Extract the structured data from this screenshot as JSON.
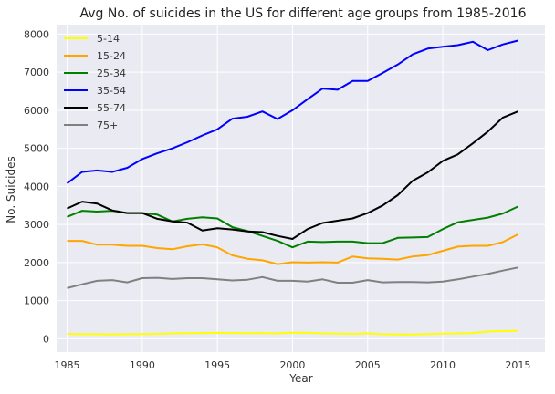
{
  "chart_data": {
    "type": "line",
    "title": "Avg No. of suicides in the US for different age groups from 1985-2016",
    "xlabel": "Year",
    "ylabel": "No. Suicides",
    "xlim": [
      1984.3,
      2016.8
    ],
    "ylim": [
      -350,
      8250
    ],
    "xticks": [
      1985,
      1990,
      1995,
      2000,
      2005,
      2010,
      2015
    ],
    "yticks": [
      0,
      1000,
      2000,
      3000,
      4000,
      5000,
      6000,
      7000,
      8000
    ],
    "grid": true,
    "legend_position": "top-left",
    "x": [
      1985,
      1986,
      1987,
      1988,
      1989,
      1990,
      1991,
      1992,
      1993,
      1994,
      1995,
      1996,
      1997,
      1998,
      1999,
      2000,
      2001,
      2002,
      2003,
      2004,
      2005,
      2006,
      2007,
      2008,
      2009,
      2010,
      2011,
      2012,
      2013,
      2014,
      2015
    ],
    "series": [
      {
        "name": "5-14",
        "color": "#ffff00",
        "values": [
          130,
          120,
          120,
          115,
          120,
          125,
          130,
          140,
          145,
          150,
          155,
          150,
          145,
          150,
          140,
          160,
          155,
          140,
          135,
          130,
          140,
          120,
          110,
          115,
          125,
          135,
          140,
          150,
          190,
          200,
          210
        ]
      },
      {
        "name": "15-24",
        "color": "#ffa500",
        "values": [
          2570,
          2570,
          2470,
          2470,
          2440,
          2440,
          2380,
          2350,
          2430,
          2480,
          2400,
          2190,
          2100,
          2060,
          1960,
          2010,
          2000,
          2010,
          2000,
          2160,
          2110,
          2100,
          2080,
          2160,
          2200,
          2310,
          2420,
          2440,
          2440,
          2540,
          2740
        ]
      },
      {
        "name": "25-34",
        "color": "#008000",
        "values": [
          3200,
          3360,
          3340,
          3360,
          3300,
          3300,
          3260,
          3080,
          3150,
          3190,
          3160,
          2930,
          2830,
          2700,
          2570,
          2400,
          2550,
          2540,
          2550,
          2550,
          2510,
          2510,
          2650,
          2660,
          2670,
          2880,
          3060,
          3120,
          3180,
          3290,
          3470
        ]
      },
      {
        "name": "35-54",
        "color": "#0000ff",
        "values": [
          4080,
          4380,
          4420,
          4380,
          4490,
          4720,
          4870,
          5000,
          5160,
          5340,
          5500,
          5780,
          5830,
          5970,
          5770,
          6000,
          6290,
          6570,
          6540,
          6770,
          6770,
          6980,
          7200,
          7470,
          7620,
          7670,
          7710,
          7800,
          7580,
          7730,
          7830
        ]
      },
      {
        "name": "55-74",
        "color": "#000000",
        "values": [
          3420,
          3600,
          3550,
          3370,
          3300,
          3300,
          3150,
          3080,
          3050,
          2840,
          2900,
          2870,
          2820,
          2800,
          2700,
          2620,
          2880,
          3040,
          3100,
          3160,
          3300,
          3500,
          3770,
          4150,
          4370,
          4670,
          4840,
          5130,
          5440,
          5810,
          5970
        ]
      },
      {
        "name": "75+",
        "color": "#808080",
        "values": [
          1330,
          1430,
          1520,
          1540,
          1480,
          1590,
          1600,
          1570,
          1590,
          1590,
          1560,
          1530,
          1550,
          1620,
          1520,
          1520,
          1500,
          1560,
          1470,
          1470,
          1540,
          1480,
          1490,
          1490,
          1480,
          1500,
          1560,
          1630,
          1700,
          1790,
          1870
        ]
      }
    ]
  }
}
